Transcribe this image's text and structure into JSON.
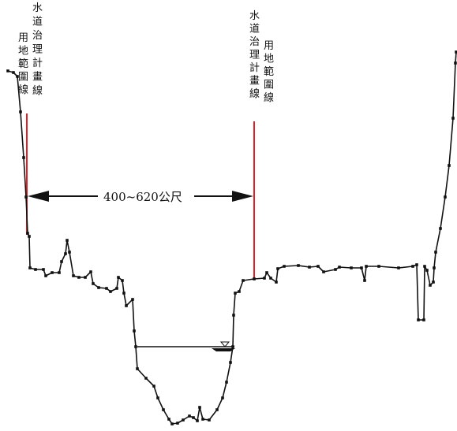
{
  "labels": {
    "left_col1": "水道治理計畫線",
    "left_col2": "用地範圍線",
    "right_col1": "水道治理計畫線",
    "right_col2": "用地範圍線",
    "dimension": "400~620公尺"
  },
  "colors": {
    "profile": "#111111",
    "boundary": "#e02020",
    "text": "#111111"
  }
}
